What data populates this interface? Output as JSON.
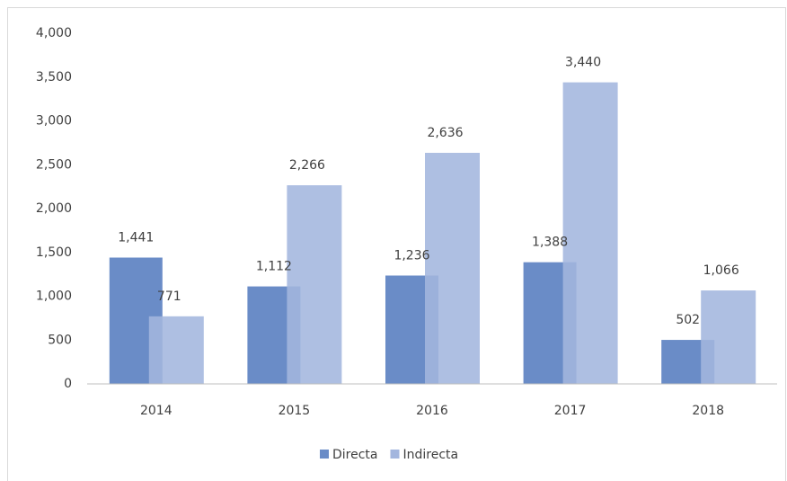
{
  "chart_data": {
    "type": "bar",
    "categories": [
      "2014",
      "2015",
      "2016",
      "2017",
      "2018"
    ],
    "series": [
      {
        "name": "Directa",
        "color": "#6a8cc7",
        "values": [
          1441,
          1112,
          1236,
          1388,
          502
        ],
        "value_labels": [
          "1,441",
          "1,112",
          "1,236",
          "1,388",
          "502"
        ]
      },
      {
        "name": "Indirecta",
        "color": "#a3b6de",
        "values": [
          771,
          2266,
          2636,
          3440,
          1066
        ],
        "value_labels": [
          "771",
          "2,266",
          "2,636",
          "3,440",
          "1,066"
        ]
      }
    ],
    "ylim": [
      0,
      4000
    ],
    "yticks": [
      0,
      500,
      {
        "value": 1000,
        "label": "1,000"
      },
      {
        "value": 1500,
        "label": "1,500"
      },
      {
        "value": 2000,
        "label": "2,000"
      },
      {
        "value": 2500,
        "label": "2,500"
      },
      {
        "value": 3000,
        "label": "3,000"
      },
      {
        "value": 3500,
        "label": "3,500"
      },
      {
        "value": 4000,
        "label": "4,000"
      }
    ],
    "grid": false,
    "legend": "bottom"
  }
}
